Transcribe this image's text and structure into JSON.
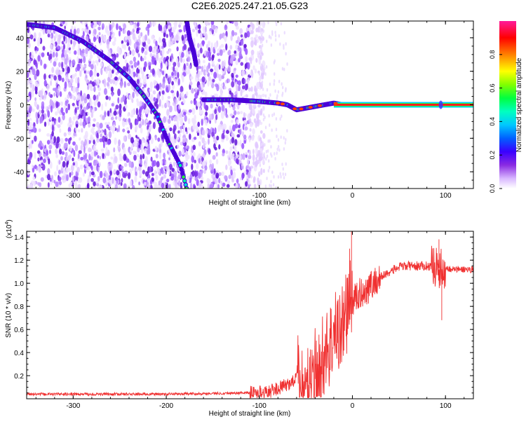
{
  "title": "C2E6.2025.247.21.05.G23",
  "chart_data": [
    {
      "type": "heatmap",
      "xlabel": "Height of straight line (km)",
      "ylabel": "Frequency (Hz)",
      "xlim": [
        -350,
        130
      ],
      "ylim": [
        -50,
        50
      ],
      "x_ticks": [
        "-300",
        "-200",
        "-100",
        "0",
        "100"
      ],
      "y_ticks": [
        "40",
        "20",
        "0",
        "-20",
        "-40"
      ],
      "colorbar_label": "Normalized spectral amplitude",
      "colorbar_ticks": [
        "0.0",
        "0.2",
        "0.4",
        "0.6",
        "0.8"
      ],
      "colorbar_range": [
        0,
        1
      ],
      "colormap": [
        "#ffffff",
        "#d9b8ff",
        "#8a2be2",
        "#5a00d8",
        "#0000ff",
        "#00b0ff",
        "#00ffd0",
        "#00ff00",
        "#ffff00",
        "#ff8000",
        "#ff0000",
        "#ff00a0"
      ],
      "traces": [
        {
          "name_visible": false,
          "x": [
            -350,
            -320,
            -290,
            -260,
            -240,
            -225,
            -210,
            -198,
            -185,
            -178
          ],
          "y": [
            48,
            46,
            38,
            26,
            16,
            6,
            -6,
            -22,
            -36,
            -50
          ]
        },
        {
          "name_visible": false,
          "x": [
            -178,
            -175,
            -170,
            -168
          ],
          "y": [
            50,
            40,
            30,
            24
          ]
        },
        {
          "name_visible": false,
          "x": [
            -160,
            -130,
            -100,
            -80,
            -70,
            -60,
            -50,
            -40,
            -30,
            -20,
            -10,
            0,
            50,
            95,
            130
          ],
          "y": [
            3,
            3,
            2,
            1,
            0,
            -3,
            -2,
            -1,
            0,
            1,
            0,
            0,
            0,
            0,
            0
          ]
        }
      ]
    },
    {
      "type": "line",
      "xlabel": "Height of straight line (km)",
      "ylabel": "SNR (10 * v/v)",
      "y_multiplier": "(x10",
      "y_multiplier_exp": "4",
      "y_multiplier_close": ")",
      "xlim": [
        -350,
        130
      ],
      "ylim": [
        0,
        1.45
      ],
      "x_ticks": [
        "-300",
        "-200",
        "-100",
        "0",
        "100"
      ],
      "y_ticks": [
        "0.2",
        "0.4",
        "0.6",
        "0.8",
        "1.0",
        "1.2",
        "1.4"
      ],
      "series_color": "#f03030",
      "x": [
        -350,
        -300,
        -200,
        -120,
        -90,
        -70,
        -60,
        -50,
        -45,
        -40,
        -30,
        -20,
        -10,
        -5,
        0,
        10,
        20,
        30,
        40,
        50,
        60,
        70,
        80,
        90,
        95,
        100,
        110,
        130
      ],
      "y": [
        0.04,
        0.04,
        0.04,
        0.05,
        0.06,
        0.12,
        0.18,
        0.12,
        0.05,
        0.25,
        0.38,
        0.55,
        0.65,
        0.8,
        0.85,
        0.92,
        0.98,
        1.05,
        1.1,
        1.14,
        1.15,
        1.15,
        1.15,
        1.15,
        1.12,
        1.13,
        1.12,
        1.12
      ],
      "spikes": [
        {
          "x": -1,
          "y": 1.45
        },
        {
          "x": -3,
          "y": 1.3
        },
        {
          "x": 93,
          "y": 1.38
        },
        {
          "x": 96,
          "y": 0.68
        }
      ]
    }
  ]
}
